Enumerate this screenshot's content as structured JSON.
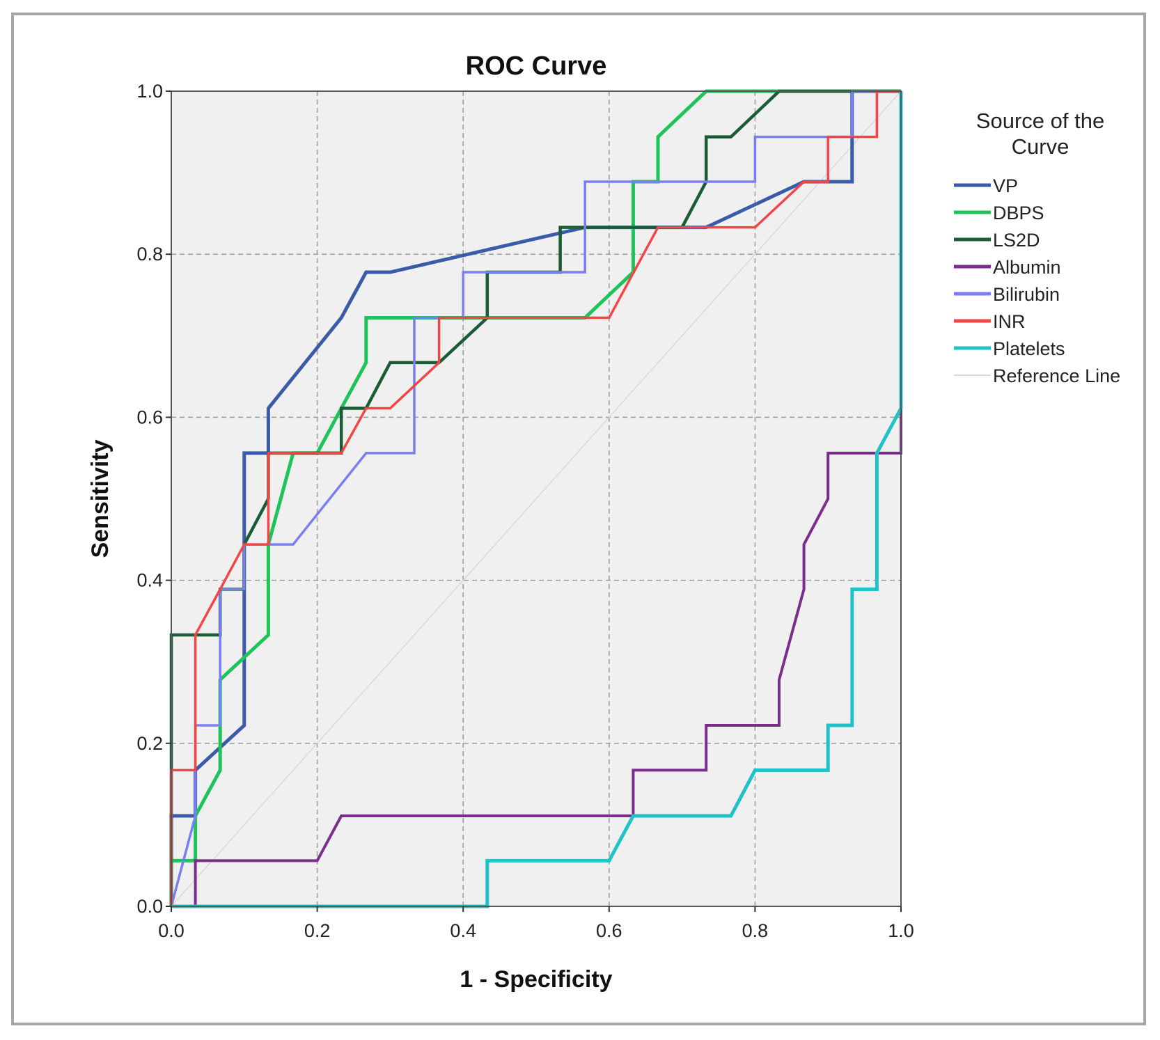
{
  "chart_data": {
    "type": "line",
    "title": "ROC Curve",
    "xlabel": "1 - Specificity",
    "ylabel": "Sensitivity",
    "xlim": [
      0,
      1
    ],
    "ylim": [
      0,
      1
    ],
    "xticks": [
      "0.0",
      "0.2",
      "0.4",
      "0.6",
      "0.8",
      "1.0"
    ],
    "yticks": [
      "0.0",
      "0.2",
      "0.4",
      "0.6",
      "0.8",
      "1.0"
    ],
    "grid": true,
    "legend_title": "Source of the Curve",
    "legend_position": "right",
    "series": [
      {
        "name": "VP",
        "color": "#3a5ba8",
        "x": [
          0,
          0,
          0.033,
          0.033,
          0.1,
          0.1,
          0.133,
          0.133,
          0.233,
          0.267,
          0.3,
          0.567,
          0.6,
          0.633,
          0.733,
          0.867,
          0.933,
          0.933,
          1,
          1
        ],
        "y": [
          0,
          0.111,
          0.111,
          0.167,
          0.222,
          0.556,
          0.556,
          0.611,
          0.722,
          0.778,
          0.778,
          0.833,
          0.833,
          0.833,
          0.833,
          0.889,
          0.889,
          1,
          1,
          1
        ]
      },
      {
        "name": "DBPS",
        "color": "#1ec45a",
        "x": [
          0,
          0,
          0.033,
          0.033,
          0.067,
          0.067,
          0.133,
          0.133,
          0.167,
          0.2,
          0.233,
          0.267,
          0.267,
          0.567,
          0.633,
          0.633,
          0.667,
          0.667,
          0.733,
          1
        ],
        "y": [
          0,
          0.056,
          0.056,
          0.111,
          0.167,
          0.278,
          0.333,
          0.444,
          0.556,
          0.556,
          0.611,
          0.667,
          0.722,
          0.722,
          0.778,
          0.889,
          0.889,
          0.944,
          1,
          1
        ]
      },
      {
        "name": "LS2D",
        "color": "#1a5c35",
        "x": [
          0,
          0,
          0.067,
          0.067,
          0.1,
          0.1,
          0.133,
          0.133,
          0.233,
          0.233,
          0.267,
          0.3,
          0.367,
          0.433,
          0.433,
          0.533,
          0.533,
          0.7,
          0.733,
          0.733,
          0.767,
          0.833,
          1
        ],
        "y": [
          0,
          0.333,
          0.333,
          0.389,
          0.389,
          0.444,
          0.5,
          0.556,
          0.556,
          0.611,
          0.611,
          0.667,
          0.667,
          0.722,
          0.778,
          0.778,
          0.833,
          0.833,
          0.889,
          0.944,
          0.944,
          1,
          1
        ]
      },
      {
        "name": "Albumin",
        "color": "#7b2d8e",
        "x": [
          0.033,
          0.033,
          0.2,
          0.233,
          0.633,
          0.633,
          0.733,
          0.733,
          0.833,
          0.833,
          0.867,
          0.867,
          0.9,
          0.9,
          1,
          1
        ],
        "y": [
          0,
          0.056,
          0.056,
          0.111,
          0.111,
          0.167,
          0.167,
          0.222,
          0.222,
          0.278,
          0.389,
          0.444,
          0.5,
          0.556,
          0.556,
          1
        ]
      },
      {
        "name": "Bilirubin",
        "color": "#7a7ef5",
        "x": [
          0,
          0.033,
          0.033,
          0.067,
          0.067,
          0.1,
          0.1,
          0.167,
          0.267,
          0.333,
          0.333,
          0.4,
          0.4,
          0.567,
          0.567,
          0.8,
          0.8,
          0.933,
          0.933,
          1
        ],
        "y": [
          0,
          0.111,
          0.222,
          0.222,
          0.389,
          0.389,
          0.444,
          0.444,
          0.556,
          0.556,
          0.722,
          0.722,
          0.778,
          0.778,
          0.889,
          0.889,
          0.944,
          0.944,
          1,
          1
        ]
      },
      {
        "name": "INR",
        "color": "#f44444",
        "x": [
          0,
          0,
          0.033,
          0.033,
          0.067,
          0.1,
          0.133,
          0.133,
          0.233,
          0.267,
          0.3,
          0.367,
          0.367,
          0.567,
          0.6,
          0.667,
          0.8,
          0.867,
          0.9,
          0.9,
          0.967,
          0.967,
          1
        ],
        "y": [
          0,
          0.167,
          0.167,
          0.333,
          0.389,
          0.444,
          0.444,
          0.556,
          0.556,
          0.611,
          0.611,
          0.667,
          0.722,
          0.722,
          0.722,
          0.833,
          0.833,
          0.889,
          0.889,
          0.944,
          0.944,
          1,
          1
        ]
      },
      {
        "name": "Platelets",
        "color": "#1fc2c8",
        "x": [
          0,
          0.433,
          0.433,
          0.6,
          0.633,
          0.767,
          0.8,
          0.9,
          0.9,
          0.933,
          0.933,
          0.967,
          0.967,
          1,
          1
        ],
        "y": [
          0,
          0,
          0.056,
          0.056,
          0.111,
          0.111,
          0.167,
          0.167,
          0.222,
          0.222,
          0.389,
          0.389,
          0.556,
          0.611,
          1
        ]
      },
      {
        "name": "Reference Line",
        "color": "#d9d9d9",
        "x": [
          0,
          1
        ],
        "y": [
          0,
          1
        ]
      }
    ]
  }
}
